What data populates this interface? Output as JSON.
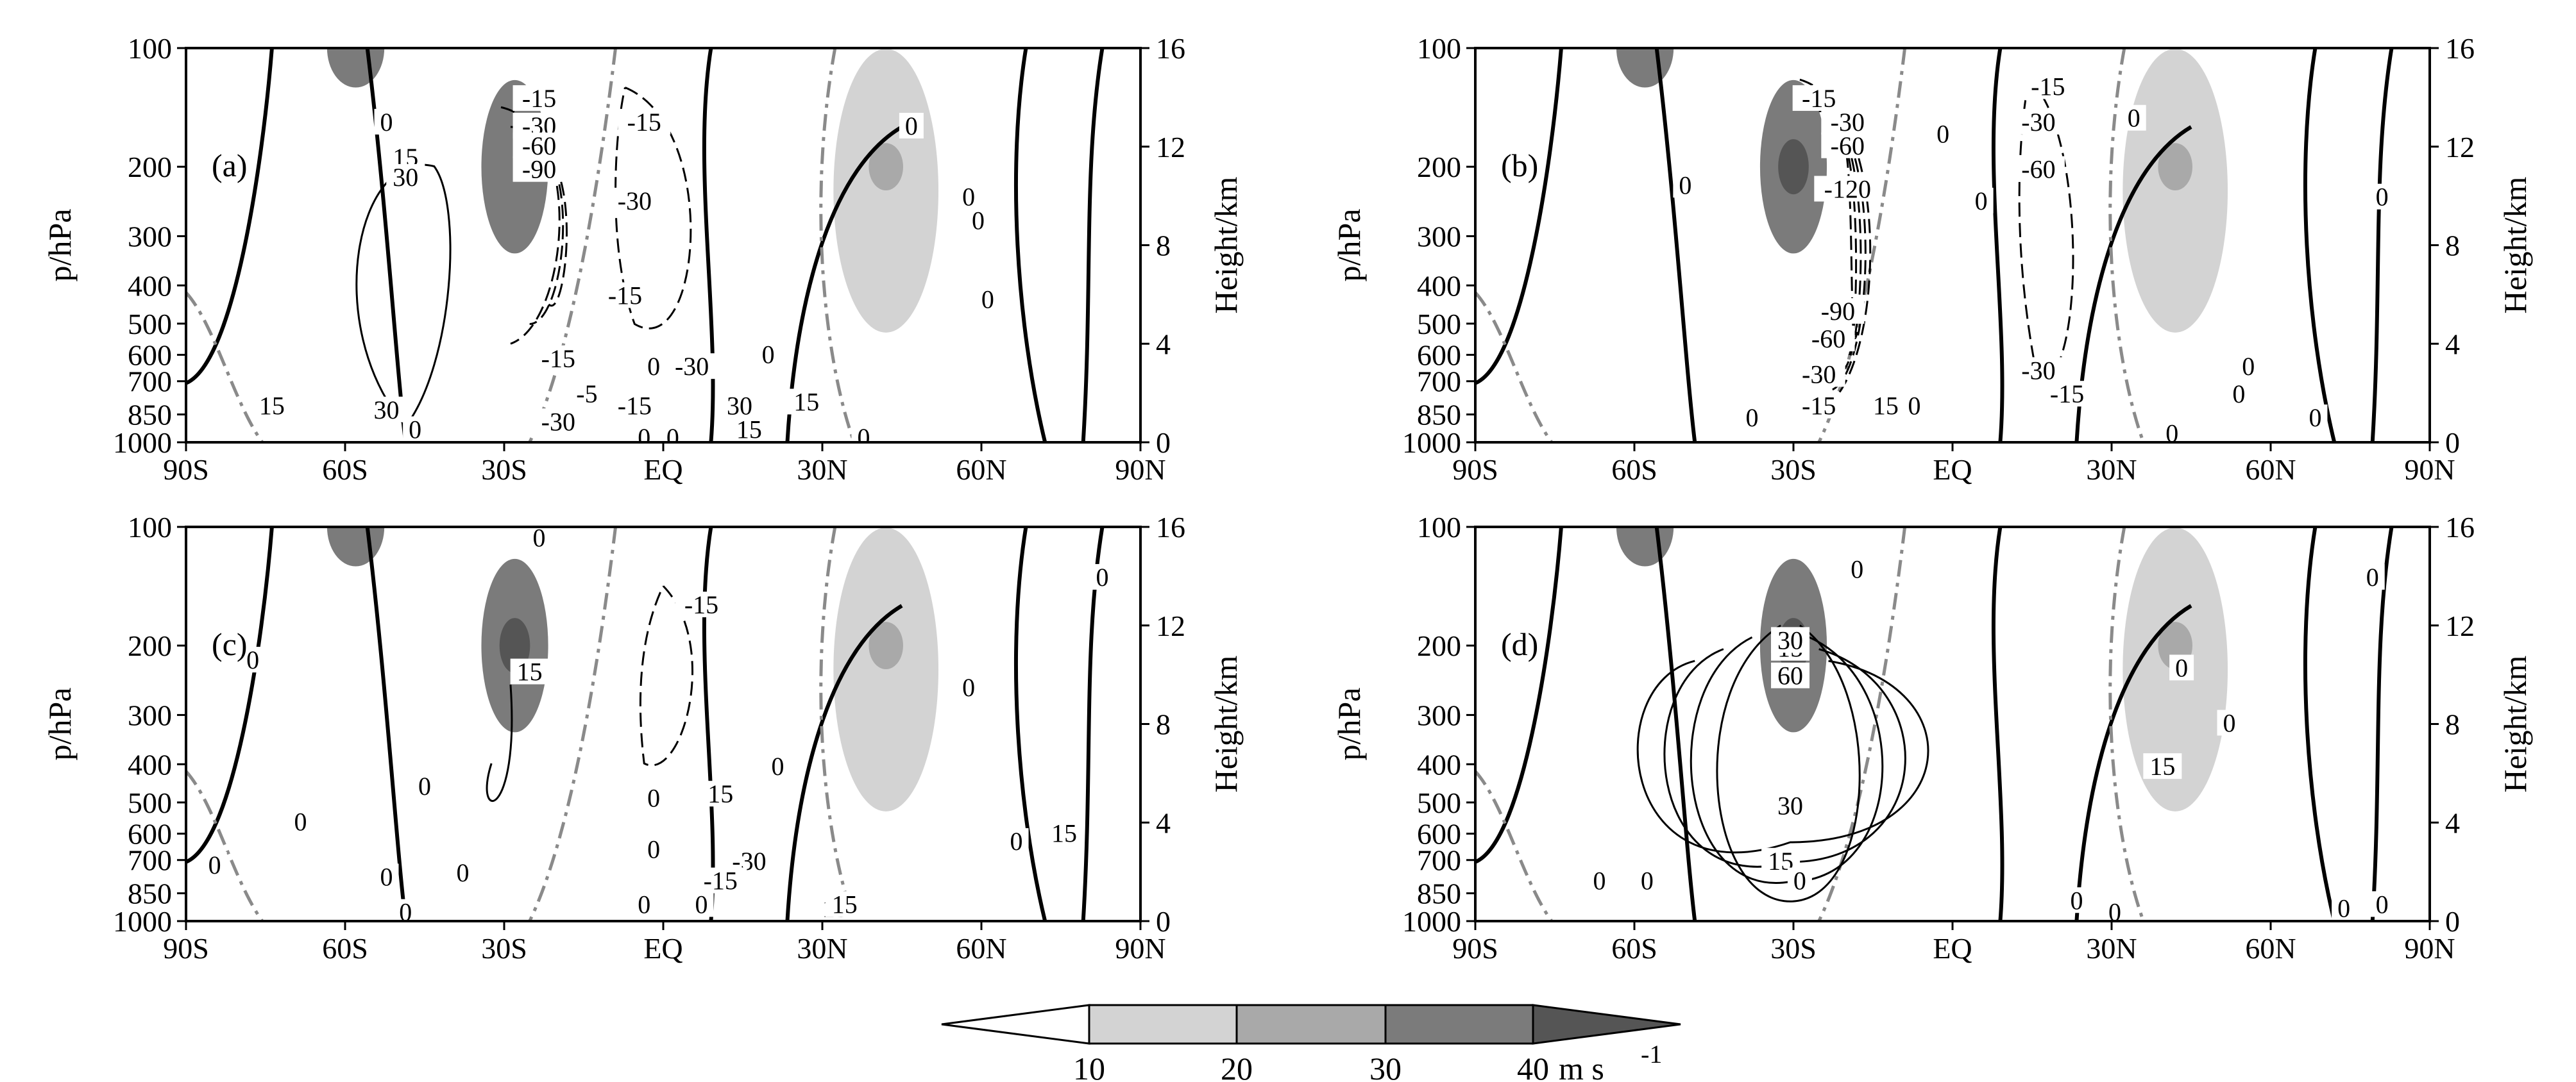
{
  "colors": {
    "shade_10_20": "#d3d3d3",
    "shade_20_30": "#a9a9a9",
    "shade_30_40": "#7b7b7b",
    "shade_40_plus": "#555555",
    "line": "#000000",
    "zero_line_dashdot": "#8a8a8a"
  },
  "chart_data": [
    {
      "type": "contour",
      "panel_label": "(a)",
      "xlabel": "",
      "ylabel": "p/hPa",
      "ylabel_right": "Height/km",
      "x_ticks": [
        "90S",
        "60S",
        "30S",
        "EQ",
        "30N",
        "60N",
        "90N"
      ],
      "y_ticks_left": [
        "100",
        "200",
        "300",
        "400",
        "500",
        "600",
        "700",
        "850",
        "1000"
      ],
      "y_ticks_right": [
        "16",
        "12",
        "8",
        "4",
        "0"
      ],
      "contour_labels": [
        "0",
        "0",
        "15",
        "30",
        "-15",
        "-30",
        "-60",
        "-90",
        "-15",
        "-30",
        "-15",
        "-15",
        "-5",
        "-30",
        "0",
        "-30",
        "0",
        "-15",
        "30",
        "15",
        "0",
        "0",
        "15",
        "0",
        "0",
        "0",
        "0",
        "0",
        "30",
        "15"
      ],
      "shading": [
        {
          "lat": -58,
          "p": 100,
          "level": "30-40"
        },
        {
          "lat": -28,
          "p": 200,
          "level": "30-40"
        },
        {
          "lat": 42,
          "p": 230,
          "level": "10-20"
        },
        {
          "lat": 42,
          "p": 200,
          "level": "20-30"
        }
      ]
    },
    {
      "type": "contour",
      "panel_label": "(b)",
      "xlabel": "",
      "ylabel": "p/hPa",
      "ylabel_right": "Height/km",
      "x_ticks": [
        "90S",
        "60S",
        "30S",
        "EQ",
        "30N",
        "60N",
        "90N"
      ],
      "y_ticks_left": [
        "100",
        "200",
        "300",
        "400",
        "500",
        "600",
        "700",
        "850",
        "1000"
      ],
      "y_ticks_right": [
        "16",
        "12",
        "8",
        "4",
        "0"
      ],
      "contour_labels": [
        "-15",
        "-30",
        "-60",
        "-120",
        "-90",
        "-60",
        "-30",
        "-15",
        "15",
        "-15",
        "-30",
        "-60",
        "-30",
        "-15",
        "0",
        "0",
        "0",
        "0",
        "0",
        "0",
        "0",
        "0",
        "0",
        "0",
        "0"
      ],
      "shading": [
        {
          "lat": -58,
          "p": 100,
          "level": "30-40"
        },
        {
          "lat": -30,
          "p": 200,
          "level": "30-40"
        },
        {
          "lat": -30,
          "p": 200,
          "level": "40+"
        },
        {
          "lat": 42,
          "p": 230,
          "level": "10-20"
        },
        {
          "lat": 42,
          "p": 200,
          "level": "20-30"
        }
      ]
    },
    {
      "type": "contour",
      "panel_label": "(c)",
      "xlabel": "",
      "ylabel": "p/hPa",
      "ylabel_right": "Height/km",
      "x_ticks": [
        "90S",
        "60S",
        "30S",
        "EQ",
        "30N",
        "60N",
        "90N"
      ],
      "y_ticks_left": [
        "100",
        "200",
        "300",
        "400",
        "500",
        "600",
        "700",
        "850",
        "1000"
      ],
      "y_ticks_right": [
        "16",
        "12",
        "8",
        "4",
        "0"
      ],
      "contour_labels": [
        "0",
        "0",
        "0",
        "15",
        "-15",
        "0",
        "15",
        "0",
        "15",
        "-30",
        "-15",
        "15",
        "0",
        "0",
        "0",
        "0",
        "0",
        "0",
        "0",
        "0",
        "0",
        "15",
        "0",
        "0"
      ],
      "shading": [
        {
          "lat": -58,
          "p": 100,
          "level": "30-40"
        },
        {
          "lat": -28,
          "p": 200,
          "level": "30-40"
        },
        {
          "lat": -28,
          "p": 200,
          "level": "40+"
        },
        {
          "lat": 42,
          "p": 230,
          "level": "10-20"
        },
        {
          "lat": 42,
          "p": 200,
          "level": "20-30"
        }
      ]
    },
    {
      "type": "contour",
      "panel_label": "(d)",
      "xlabel": "",
      "ylabel": "p/hPa",
      "ylabel_right": "Height/km",
      "x_ticks": [
        "90S",
        "60S",
        "30S",
        "EQ",
        "30N",
        "60N",
        "90N"
      ],
      "y_ticks_left": [
        "100",
        "200",
        "300",
        "400",
        "500",
        "600",
        "700",
        "850",
        "1000"
      ],
      "y_ticks_right": [
        "16",
        "12",
        "8",
        "4",
        "0"
      ],
      "contour_labels": [
        "0",
        "15",
        "30",
        "60",
        "30",
        "15",
        "0",
        "0",
        "0",
        "15",
        "0",
        "0",
        "0",
        "0",
        "0",
        "0",
        "0"
      ],
      "shading": [
        {
          "lat": -58,
          "p": 100,
          "level": "30-40"
        },
        {
          "lat": -30,
          "p": 200,
          "level": "30-40"
        },
        {
          "lat": -30,
          "p": 200,
          "level": "40+"
        },
        {
          "lat": 42,
          "p": 230,
          "level": "10-20"
        },
        {
          "lat": 42,
          "p": 200,
          "level": "20-30"
        }
      ]
    }
  ],
  "colorbar": {
    "ticks": [
      "10",
      "20",
      "30",
      "40"
    ],
    "unit": "m s",
    "unit_exponent": "-1"
  }
}
